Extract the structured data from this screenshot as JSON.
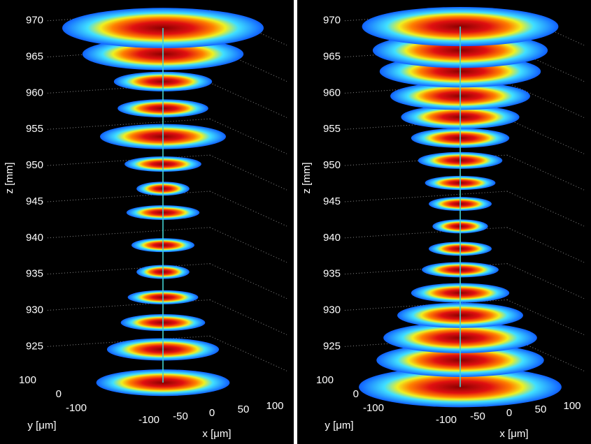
{
  "chart_data": [
    {
      "type": "slices",
      "xlabel": "x [μm]",
      "ylabel": "y [μm]",
      "zlabel": "z [mm]",
      "xlim": [
        -150,
        150
      ],
      "xticks": [
        -100,
        -50,
        0,
        50,
        100
      ],
      "ylim": [
        -150,
        150
      ],
      "yticks": [
        100,
        0,
        -100
      ],
      "zlim": [
        915,
        972
      ],
      "zticks": [
        925,
        930,
        935,
        940,
        945,
        950,
        955,
        960,
        965,
        970
      ],
      "grid": true,
      "axis_color": "#40d0d0",
      "z": [
        969,
        965.4,
        961.6,
        957.9,
        954,
        950.2,
        946.8,
        943.5,
        939,
        935.3,
        931.8,
        928.3,
        924.6,
        920
      ],
      "radius": [
        160,
        128,
        78,
        72,
        100,
        61,
        42,
        58,
        50,
        42,
        56,
        67,
        89,
        106
      ]
    },
    {
      "type": "slices",
      "xlabel": "x [μm]",
      "ylabel": "y [μm]",
      "zlabel": "z [mm]",
      "xlim": [
        -150,
        150
      ],
      "xticks": [
        -100,
        -50,
        0,
        50,
        100
      ],
      "ylim": [
        -150,
        150
      ],
      "yticks": [
        100,
        0,
        -100
      ],
      "zlim": [
        915,
        972
      ],
      "zticks": [
        925,
        930,
        935,
        940,
        945,
        950,
        955,
        960,
        965,
        970
      ],
      "grid": true,
      "axis_color": "#40d0d0",
      "z": [
        969.2,
        965.9,
        963,
        959.6,
        956.7,
        953.8,
        950.7,
        947.6,
        944.7,
        941.6,
        938.5,
        935.6,
        932.4,
        929.3,
        926.2,
        923.1,
        919.4
      ],
      "radius": [
        156,
        139,
        128,
        111,
        94,
        78,
        67,
        56,
        50,
        44,
        50,
        61,
        78,
        100,
        122,
        133,
        161
      ]
    }
  ]
}
